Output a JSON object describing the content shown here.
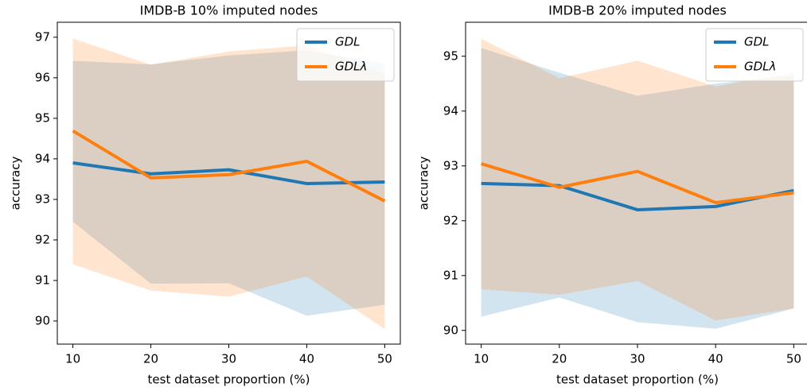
{
  "chart_data": [
    {
      "type": "line",
      "title": "IMDB-B 10% imputed nodes",
      "xlabel": "test dataset proportion (%)",
      "ylabel": "accuracy",
      "x": [
        10,
        20,
        30,
        40,
        50
      ],
      "xlim": [
        8,
        52
      ],
      "xticks": [
        10,
        20,
        30,
        40,
        50
      ],
      "ylim": [
        89.43,
        97.37
      ],
      "yticks": [
        90,
        91,
        92,
        93,
        94,
        95,
        96,
        97
      ],
      "legend": "upper right",
      "series": [
        {
          "name": "GDL",
          "color": "#1f77b4",
          "values": [
            93.9,
            93.63,
            93.73,
            93.39,
            93.43
          ],
          "upper": [
            96.42,
            96.33,
            96.55,
            96.68,
            96.35
          ],
          "lower": [
            92.45,
            90.92,
            90.93,
            90.13,
            90.4
          ]
        },
        {
          "name": "GDLλ",
          "color": "#ff7f0e",
          "values": [
            94.69,
            93.53,
            93.61,
            93.94,
            92.96
          ],
          "upper": [
            96.97,
            96.32,
            96.65,
            96.8,
            96.1
          ],
          "lower": [
            91.4,
            90.75,
            90.6,
            91.1,
            89.8
          ]
        }
      ]
    },
    {
      "type": "line",
      "title": "IMDB-B 20% imputed nodes",
      "xlabel": "test dataset proportion (%)",
      "ylabel": "accuracy",
      "x": [
        10,
        20,
        30,
        40,
        50
      ],
      "xlim": [
        8,
        52
      ],
      "xticks": [
        10,
        20,
        30,
        40,
        50
      ],
      "ylim": [
        89.75,
        95.62
      ],
      "yticks": [
        90,
        91,
        92,
        93,
        94,
        95
      ],
      "legend": "upper right",
      "series": [
        {
          "name": "GDL",
          "color": "#1f77b4",
          "values": [
            92.68,
            92.64,
            92.2,
            92.26,
            92.55
          ],
          "upper": [
            95.15,
            94.7,
            94.28,
            94.5,
            94.65
          ],
          "lower": [
            90.25,
            90.6,
            90.15,
            90.03,
            90.4
          ]
        },
        {
          "name": "GDLλ",
          "color": "#ff7f0e",
          "values": [
            93.04,
            92.61,
            92.9,
            92.33,
            92.51
          ],
          "upper": [
            95.32,
            94.6,
            94.92,
            94.45,
            94.7
          ],
          "lower": [
            90.75,
            90.65,
            90.9,
            90.18,
            90.4
          ]
        }
      ]
    }
  ]
}
